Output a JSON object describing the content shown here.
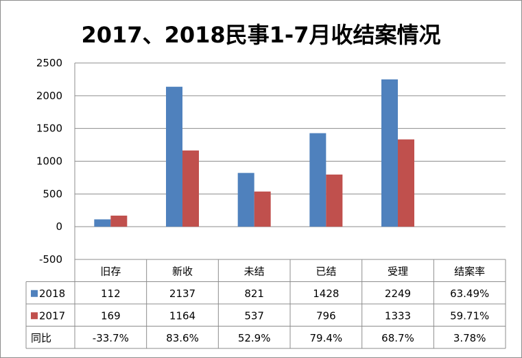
{
  "chart_data": {
    "type": "bar",
    "title": "2017、2018民事1-7月收结案情况",
    "categories": [
      "旧存",
      "新收",
      "未结",
      "已结",
      "受理",
      "结案率"
    ],
    "yticks": [
      "2500",
      "2000",
      "1500",
      "1000",
      "500",
      "0",
      "-500"
    ],
    "ylim": [
      -500,
      2500
    ],
    "grid": true,
    "legend": "data-table",
    "series": [
      {
        "name": "2018",
        "color": "#4f81bd",
        "values": [
          112,
          2137,
          821,
          1428,
          2249,
          null
        ],
        "table": [
          "112",
          "2137",
          "821",
          "1428",
          "2249",
          "63.49%"
        ]
      },
      {
        "name": "2017",
        "color": "#c0504d",
        "values": [
          169,
          1164,
          537,
          796,
          1333,
          null
        ],
        "table": [
          "169",
          "1164",
          "537",
          "796",
          "1333",
          "59.71%"
        ]
      }
    ],
    "extra_row": {
      "name": "同比",
      "table": [
        "-33.7%",
        "83.6%",
        "52.9%",
        "79.4%",
        "68.7%",
        "3.78%"
      ]
    }
  }
}
